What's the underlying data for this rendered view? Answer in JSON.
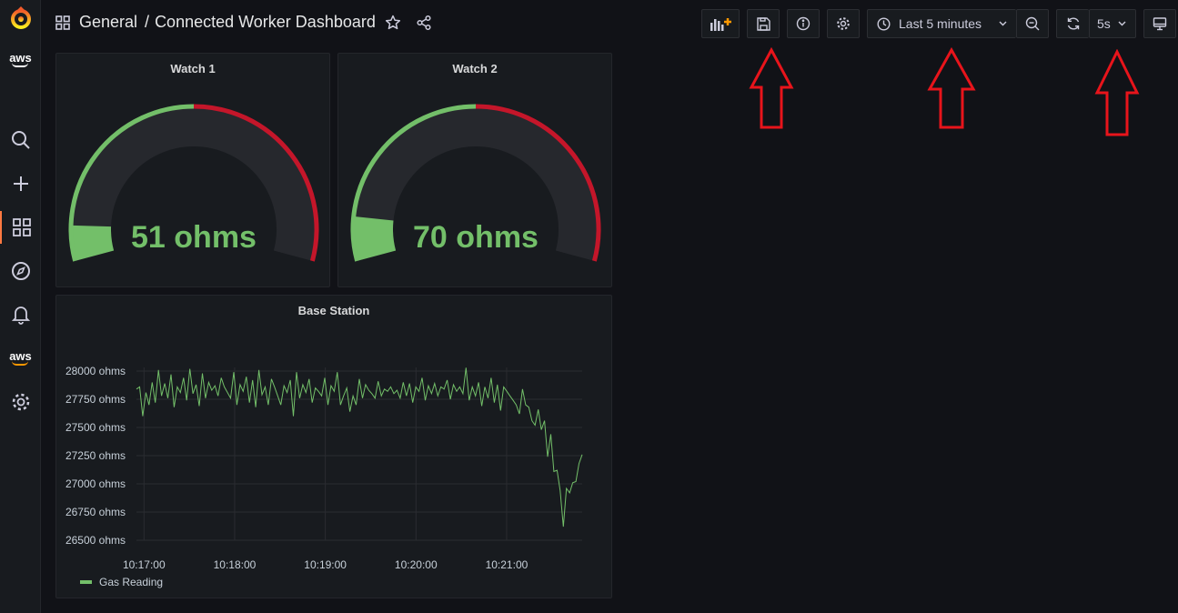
{
  "breadcrumb": {
    "folder": "General",
    "separator": "/",
    "dashboard": "Connected Worker Dashboard"
  },
  "toolbar": {
    "time_range": "Last 5 minutes",
    "refresh_interval": "5s"
  },
  "gauges": [
    {
      "title": "Watch 1",
      "value_text": "51 ohms",
      "value": 51,
      "threshold_fraction": 0.5,
      "fill_fraction": 0.08,
      "color_ok": "#73bf69",
      "color_alert": "#c4162a"
    },
    {
      "title": "Watch 2",
      "value_text": "70 ohms",
      "value": 70,
      "threshold_fraction": 0.5,
      "fill_fraction": 0.1,
      "color_ok": "#73bf69",
      "color_alert": "#c4162a"
    }
  ],
  "chart_data": {
    "type": "line",
    "title": "Base Station",
    "series": [
      {
        "name": "Gas Reading",
        "color": "#73bf69",
        "values": [
          27840,
          27860,
          27600,
          27810,
          27700,
          27900,
          27720,
          28010,
          27780,
          27890,
          27760,
          27970,
          27680,
          27860,
          27810,
          27940,
          27740,
          28020,
          27800,
          27880,
          27690,
          27980,
          27760,
          27900,
          27830,
          27870,
          27780,
          27940,
          27860,
          27810,
          27760,
          27990,
          27700,
          27880,
          27820,
          27950,
          27720,
          27920,
          27680,
          28010,
          27790,
          27860,
          27700,
          27930,
          27860,
          27780,
          27700,
          27870,
          27810,
          27920,
          27600,
          27990,
          27760,
          27880,
          27810,
          27930,
          27720,
          27850,
          27820,
          27780,
          27940,
          27700,
          27870,
          27820,
          27990,
          27700,
          27780,
          27850,
          27640,
          27780,
          27700,
          27930,
          27760,
          27880,
          27830,
          27800,
          27760,
          27910,
          27780,
          27840,
          27820,
          27860,
          27800,
          27830,
          27760,
          27900,
          27780,
          27890,
          27720,
          27860,
          27820,
          27940,
          27740,
          27870,
          27800,
          27890,
          27780,
          27860,
          27840,
          27920,
          27750,
          27880,
          27820,
          27860,
          27800,
          28030,
          27740,
          27860,
          27780,
          27900,
          27690,
          27860,
          27760,
          27940,
          27720,
          27880,
          27650,
          27860,
          27820,
          27780,
          27740,
          27700,
          27620,
          27840,
          27700,
          27680,
          27560,
          27520,
          27660,
          27480,
          27560,
          27240,
          27440,
          27110,
          27120,
          26940,
          26620,
          26960,
          26920,
          27010,
          27020,
          27180,
          27260
        ],
        "x_start": "10:16:55",
        "x_end": "10:21:50"
      }
    ],
    "x_ticks": [
      "10:17:00",
      "10:18:00",
      "10:19:00",
      "10:20:00",
      "10:21:00"
    ],
    "y_ticks": [
      "28000 ohms",
      "27750 ohms",
      "27500 ohms",
      "27250 ohms",
      "27000 ohms",
      "26750 ohms",
      "26500 ohms"
    ],
    "ylim": [
      26500,
      28000
    ],
    "grid": true,
    "legend": "bottom-left"
  },
  "colors": {
    "accent": "#ff7941",
    "annotation_arrow": "#e8141b"
  }
}
